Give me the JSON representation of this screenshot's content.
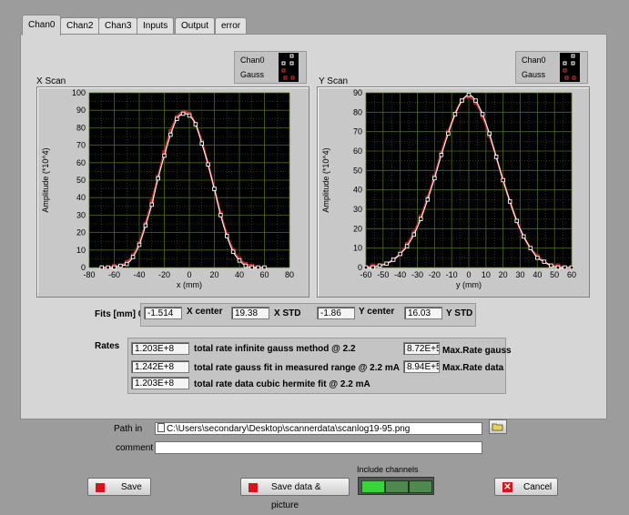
{
  "tabs": [
    {
      "label": "Chan0"
    },
    {
      "label": "Chan2"
    },
    {
      "label": "Chan3"
    },
    {
      "label": "Inputs"
    },
    {
      "label": "Output"
    },
    {
      "label": "error"
    }
  ],
  "legend": {
    "chan0": "Chan0",
    "gauss": "Gauss"
  },
  "colors": {
    "measured": "#ffffff",
    "fit": "#c82828",
    "grid": "#4e6a18",
    "plot_bg": "#000000"
  },
  "chart_data": [
    {
      "type": "scatter",
      "title": "X Scan",
      "xlabel": "x (mm)",
      "ylabel": "Amplitude (*10^4)",
      "xlim": [
        -80,
        80
      ],
      "ylim": [
        0,
        100
      ],
      "xticks": [
        -80,
        -60,
        -40,
        -20,
        0,
        20,
        40,
        60,
        80
      ],
      "yticks": [
        0,
        10,
        20,
        30,
        40,
        50,
        60,
        70,
        80,
        90,
        100
      ],
      "grid": true,
      "series": [
        {
          "name": "Chan0",
          "x": [
            -70,
            -65,
            -60,
            -55,
            -50,
            -45,
            -40,
            -35,
            -30,
            -25,
            -20,
            -15,
            -10,
            -5,
            0,
            5,
            10,
            15,
            20,
            25,
            30,
            35,
            40,
            45,
            50,
            55,
            60
          ],
          "values": [
            0,
            0,
            0,
            1,
            2,
            6,
            13,
            24,
            36,
            51,
            64,
            76,
            85,
            88,
            87,
            82,
            71,
            59,
            45,
            30,
            18,
            9,
            4,
            1,
            0,
            0,
            0
          ]
        },
        {
          "name": "Gauss",
          "x": [
            -70,
            -65,
            -60,
            -55,
            -50,
            -45,
            -40,
            -35,
            -30,
            -25,
            -20,
            -15,
            -10,
            -5,
            0,
            5,
            10,
            15,
            20,
            25,
            30,
            35,
            40,
            45,
            50,
            55,
            60
          ],
          "values": [
            0,
            0,
            1,
            1,
            3,
            7,
            14,
            25,
            38,
            52,
            66,
            78,
            86,
            89,
            88,
            82,
            72,
            59,
            45,
            31,
            19,
            10,
            5,
            2,
            1,
            0,
            0
          ]
        }
      ]
    },
    {
      "type": "scatter",
      "title": "Y Scan",
      "xlabel": "y (mm)",
      "ylabel": "Amplitude (*10^4)",
      "xlim": [
        -60,
        60
      ],
      "ylim": [
        0,
        90
      ],
      "xticks": [
        -60,
        -50,
        -40,
        -30,
        -20,
        -10,
        0,
        10,
        20,
        30,
        40,
        50,
        60
      ],
      "yticks": [
        0,
        10,
        20,
        30,
        40,
        50,
        60,
        70,
        80,
        90
      ],
      "grid": true,
      "series": [
        {
          "name": "Chan0",
          "x": [
            -60,
            -56,
            -52,
            -48,
            -44,
            -40,
            -36,
            -32,
            -28,
            -24,
            -20,
            -16,
            -12,
            -8,
            -4,
            0,
            4,
            8,
            12,
            16,
            20,
            24,
            28,
            32,
            36,
            40,
            44,
            48,
            52,
            56,
            60
          ],
          "values": [
            0,
            0,
            1,
            2,
            4,
            7,
            11,
            17,
            25,
            35,
            46,
            58,
            69,
            79,
            86,
            89,
            86,
            79,
            69,
            57,
            45,
            34,
            24,
            16,
            10,
            5,
            3,
            1,
            0,
            0,
            0
          ]
        },
        {
          "name": "Gauss",
          "x": [
            -60,
            -56,
            -52,
            -48,
            -44,
            -40,
            -36,
            -32,
            -28,
            -24,
            -20,
            -16,
            -12,
            -8,
            -4,
            0,
            4,
            8,
            12,
            16,
            20,
            24,
            28,
            32,
            36,
            40,
            44,
            48,
            52,
            56,
            60
          ],
          "values": [
            0,
            1,
            1,
            2,
            4,
            7,
            12,
            18,
            26,
            36,
            47,
            59,
            70,
            79,
            86,
            88,
            85,
            78,
            68,
            57,
            45,
            34,
            24,
            16,
            10,
            6,
            3,
            1,
            1,
            0,
            0
          ]
        }
      ]
    }
  ],
  "fits": {
    "label": "Fits [mm] 0",
    "x_center_value": "-1.514",
    "x_center_label": "X center",
    "x_std_value": "19.38",
    "x_std_label": "X STD",
    "y_center_value": "-1.86",
    "y_center_label": "Y center",
    "y_std_value": "16.03",
    "y_std_label": "Y STD"
  },
  "rates": {
    "label": "Rates",
    "rows": [
      {
        "value": "1.203E+8",
        "label": "total rate infinite gauss method @ 2.2"
      },
      {
        "value": "1.242E+8",
        "label": "total rate gauss fit in measured range @ 2.2 mA"
      },
      {
        "value": "1.203E+8",
        "label": "total rate data cubic hermite fit @ 2.2 mA"
      }
    ],
    "max_gauss_value": "8.72E+5",
    "max_gauss_label": "Max.Rate gauss",
    "max_data_value": "8.94E+5",
    "max_data_label": "Max.Rate data"
  },
  "path": {
    "label": "Path in",
    "value": "C:\\Users\\secondary\\Desktop\\scannerdata\\scanlog19-95.png"
  },
  "comment": {
    "label": "comment",
    "value": ""
  },
  "include_channels": {
    "label": "Include channels"
  },
  "buttons": {
    "save": "Save",
    "save_data": "Save data & picture",
    "cancel": "Cancel"
  }
}
